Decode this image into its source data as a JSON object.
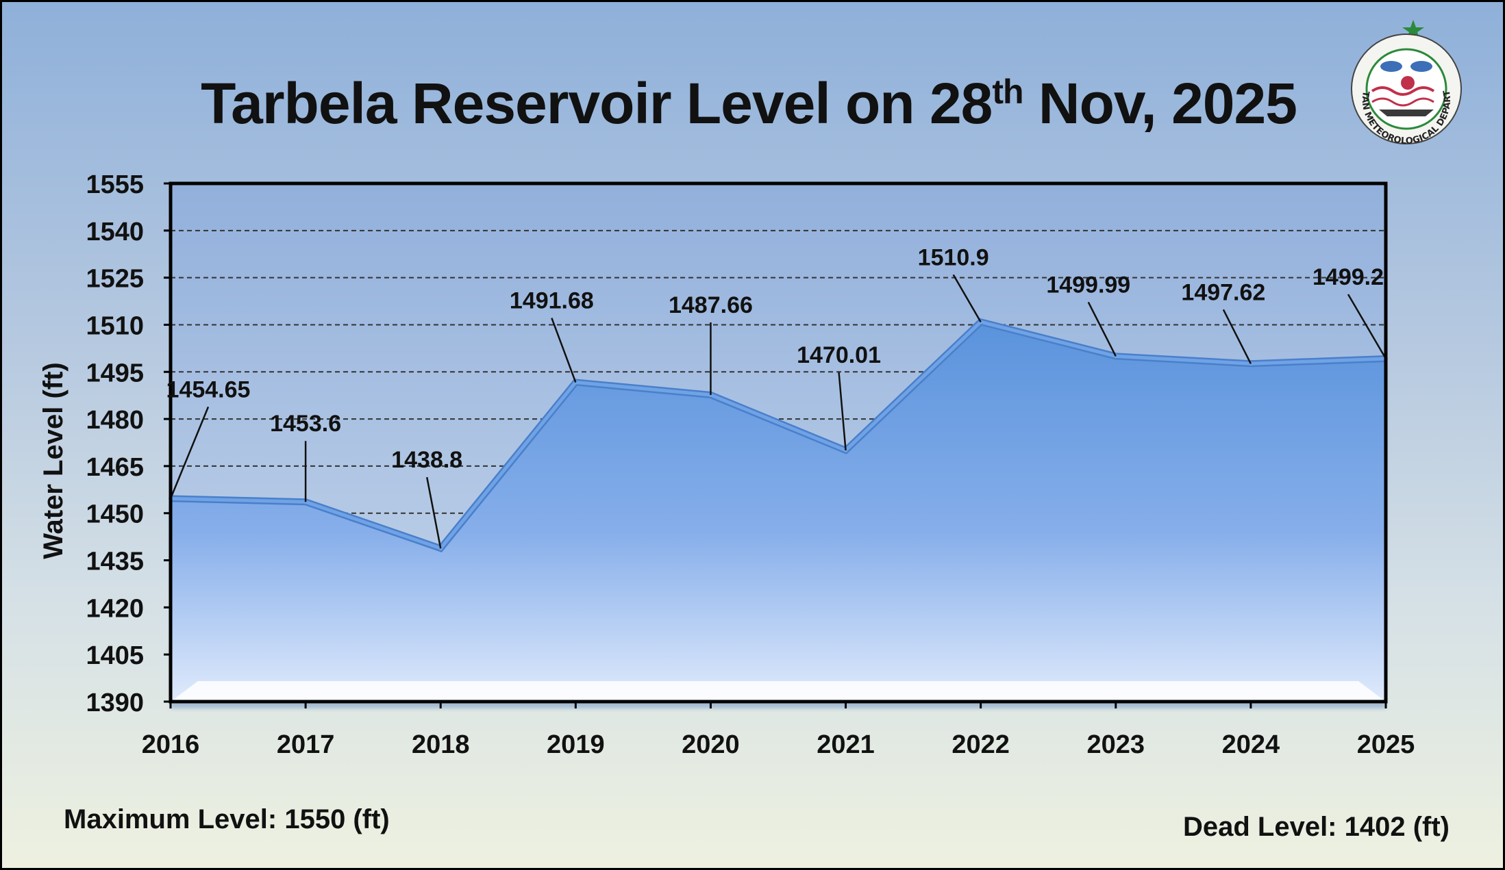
{
  "title": {
    "prefix": "Tarbela Reservoir Level on 28",
    "superscript": "th",
    "suffix": " Nov, 2025"
  },
  "footer": {
    "max_level": "Maximum Level: 1550 (ft)",
    "dead_level": "Dead Level: 1402 (ft)"
  },
  "logo": {
    "text": "PAKISTAN METEOROLOGICAL DEPARTMENT"
  },
  "colors": {
    "area_top": "#5a93dc",
    "area_bottom": "#dfeafc",
    "line": "#6fa3e6",
    "grid": "#333333",
    "text": "#111111"
  },
  "chart_data": {
    "type": "area",
    "title": "Tarbela Reservoir Level on 28th Nov, 2025",
    "xlabel": "",
    "ylabel": "Water Level (ft)",
    "ylim": [
      1390,
      1555
    ],
    "yticks": [
      1390,
      1405,
      1420,
      1435,
      1450,
      1465,
      1480,
      1495,
      1510,
      1525,
      1540,
      1555
    ],
    "categories": [
      "2016",
      "2017",
      "2018",
      "2019",
      "2020",
      "2021",
      "2022",
      "2023",
      "2024",
      "2025"
    ],
    "values": [
      1454.65,
      1453.6,
      1438.8,
      1491.68,
      1487.66,
      1470.01,
      1510.9,
      1499.99,
      1497.62,
      1499.2
    ],
    "labels": [
      "1454.65",
      "1453.6",
      "1438.8",
      "1491.68",
      "1487.66",
      "1470.01",
      "1510.9",
      "1499.99",
      "1497.62",
      "1499.2"
    ],
    "grid": true,
    "legend": "none"
  }
}
